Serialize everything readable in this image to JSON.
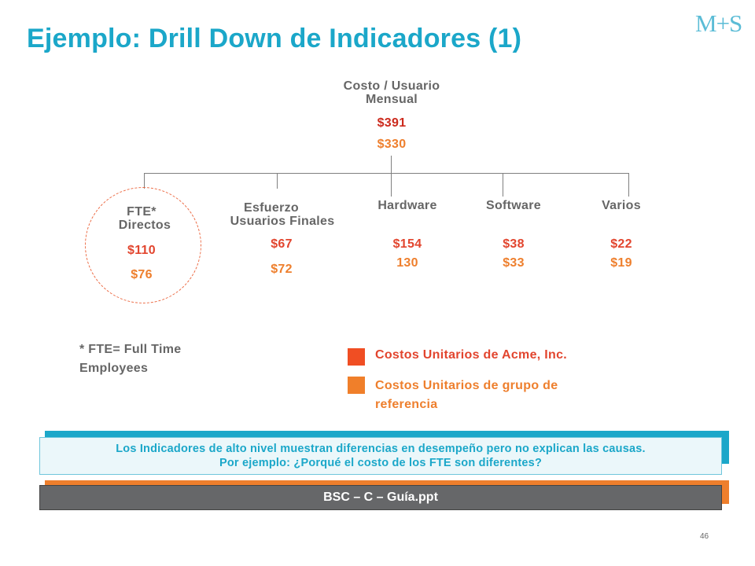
{
  "title": "Ejemplo: Drill Down de Indicadores (1)",
  "logo_text": "M+S",
  "root": {
    "label_line1": "Costo / Usuario",
    "label_line2": "Mensual",
    "value_company": "$391",
    "value_reference": "$330"
  },
  "children": [
    {
      "label_line1": "FTE*",
      "label_line2": "Directos",
      "value_company": "$110",
      "value_reference": "$76"
    },
    {
      "label_line1": "Esfuerzo",
      "label_line2": "Usuarios Finales",
      "value_company": "$67",
      "value_reference": "$72"
    },
    {
      "label_line1": "Hardware",
      "value_company": "$154",
      "value_reference": "130"
    },
    {
      "label_line1": "Software",
      "value_company": "$38",
      "value_reference": "$33"
    },
    {
      "label_line1": "Varios",
      "value_company": "$22",
      "value_reference": "$19"
    }
  ],
  "footnote_line1": "* FTE= Full Time",
  "footnote_line2": "Employees",
  "legend": [
    {
      "text": "Costos Unitarios de Acme, Inc.",
      "color": "#f04e23"
    },
    {
      "text_line1": "Costos Unitarios de grupo de",
      "text_line2": "referencia",
      "color": "#f07f2a"
    }
  ],
  "callout": {
    "line1": "Los Indicadores de alto nivel muestran diferencias en desempeño pero no explican las causas.",
    "line2": "Por ejemplo: ¿Porqué el costo de los FTE son diferentes?"
  },
  "file_label": "BSC – C – Guía.ppt",
  "page_number": "46",
  "colors": {
    "title": "#1ba7c9",
    "company": "#e2452e",
    "reference": "#ee7f2d",
    "gray_text": "#666666"
  }
}
